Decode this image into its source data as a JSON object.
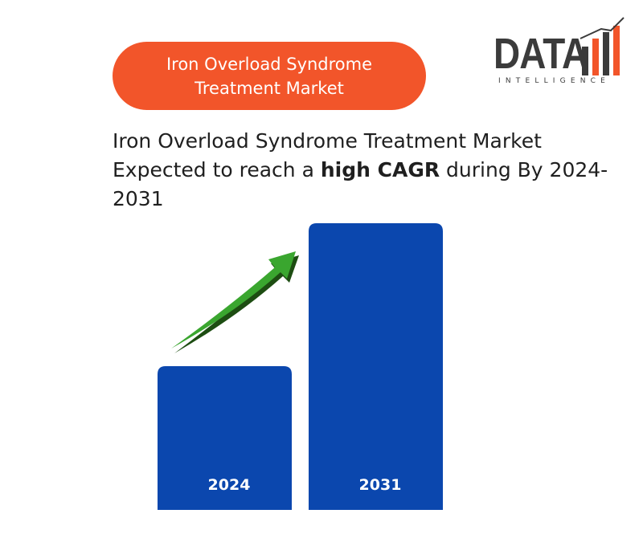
{
  "badge": {
    "lines": [
      "Iron Overload Syndrome",
      "Treatment Market"
    ]
  },
  "logo": {
    "word": "DATA",
    "tagline": "INTELLIGENCE"
  },
  "headline": {
    "line1": "Iron Overload Syndrome Treatment Market",
    "line2_before": "Expected to reach a ",
    "emphasis": "high CAGR",
    "line2_after": " during By 2024-",
    "line3": "2031"
  },
  "bars": [
    {
      "label": "2024"
    },
    {
      "label": "2031"
    }
  ]
}
